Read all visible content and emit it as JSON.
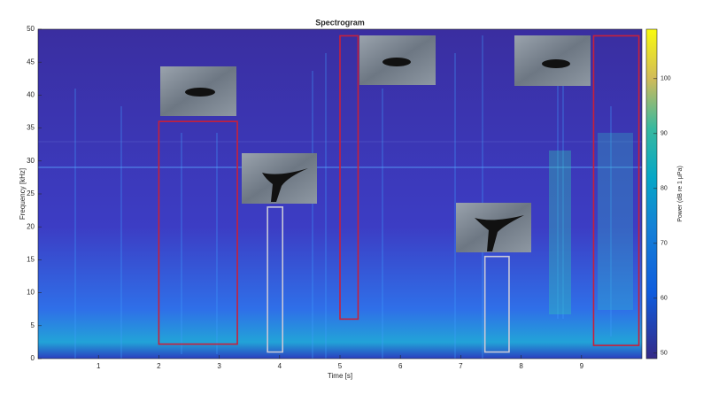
{
  "chart_data": {
    "type": "spectrogram",
    "title": "Spectrogram",
    "x_label": "Time [s]",
    "y_label": "Frequency [kHz]",
    "xlim": [
      0,
      10
    ],
    "ylim": [
      0,
      50
    ],
    "xticks": [
      1,
      2,
      3,
      4,
      5,
      6,
      7,
      8,
      9
    ],
    "yticks": [
      0,
      5,
      10,
      15,
      20,
      25,
      30,
      35,
      40,
      45,
      50
    ],
    "colorbar": {
      "label": "Power (dB re 1 μPa)",
      "clim": [
        49,
        109
      ],
      "ticks": [
        50,
        60,
        70,
        80,
        90,
        100
      ]
    },
    "annotations": [
      {
        "x": [
          2.0,
          3.3
        ],
        "y": [
          2.2,
          36
        ],
        "color": "#c8203a"
      },
      {
        "x": [
          3.8,
          4.05
        ],
        "y": [
          1,
          23
        ],
        "color": "#c8c8d8"
      },
      {
        "x": [
          5.0,
          5.3
        ],
        "y": [
          6,
          49
        ],
        "color": "#c8203a"
      },
      {
        "x": [
          7.4,
          7.8
        ],
        "y": [
          1,
          15.5
        ],
        "color": "#c8c8d8"
      },
      {
        "x": [
          9.2,
          9.95
        ],
        "y": [
          2,
          49
        ],
        "color": "#c8203a"
      }
    ]
  }
}
